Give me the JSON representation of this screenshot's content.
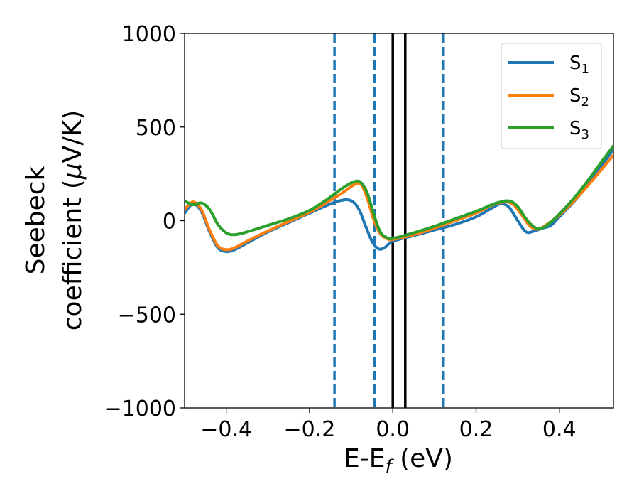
{
  "chart_data": {
    "type": "line",
    "title": "",
    "xlabel": "E-E",
    "xlabel_sub": "f",
    "xlabel_unit": " (eV)",
    "ylabel_line1": "Seebeck",
    "ylabel_line2_prefix": "coefficient  (",
    "ylabel_mu": "μ",
    "ylabel_line2_suffix": "V/K)",
    "xlim": [
      -0.5,
      0.53
    ],
    "ylim": [
      -1000,
      1000
    ],
    "x_ticks": [
      -0.4,
      -0.2,
      0.0,
      0.2,
      0.4
    ],
    "x_tick_labels": [
      "−0.4",
      "−0.2",
      "0.0",
      "0.2",
      "0.4"
    ],
    "y_ticks": [
      1000,
      500,
      0,
      -500,
      -1000
    ],
    "y_tick_labels": [
      "1000",
      "500",
      "0",
      "−500",
      "−1000"
    ],
    "legend_position": "top-right",
    "vlines_dashed": {
      "x": [
        -0.14,
        -0.044,
        0.122
      ],
      "color": "#1f77b4"
    },
    "vlines_solid": {
      "x": [
        0.0,
        0.03
      ],
      "color": "#000000"
    },
    "series": [
      {
        "name": "S",
        "sub": "1",
        "color": "#1f77b4",
        "x": [
          -0.5,
          -0.48,
          -0.46,
          -0.44,
          -0.42,
          -0.4,
          -0.38,
          -0.35,
          -0.3,
          -0.25,
          -0.2,
          -0.16,
          -0.13,
          -0.11,
          -0.095,
          -0.08,
          -0.065,
          -0.05,
          -0.035,
          -0.02,
          0.0,
          0.05,
          0.1,
          0.15,
          0.2,
          0.24,
          0.26,
          0.28,
          0.3,
          0.32,
          0.34,
          0.36,
          0.38,
          0.4,
          0.45,
          0.5,
          0.53
        ],
        "y": [
          40,
          90,
          50,
          -60,
          -145,
          -165,
          -155,
          -120,
          -60,
          -10,
          40,
          80,
          105,
          112,
          100,
          55,
          -30,
          -110,
          -150,
          -145,
          -110,
          -80,
          -50,
          -20,
          20,
          70,
          90,
          70,
          0,
          -60,
          -55,
          -40,
          -25,
          20,
          140,
          290,
          380
        ]
      },
      {
        "name": "S",
        "sub": "2",
        "color": "#ff7f0e",
        "x": [
          -0.5,
          -0.48,
          -0.46,
          -0.44,
          -0.42,
          -0.4,
          -0.38,
          -0.35,
          -0.3,
          -0.25,
          -0.2,
          -0.16,
          -0.12,
          -0.09,
          -0.075,
          -0.06,
          -0.045,
          -0.03,
          -0.015,
          0.0,
          0.05,
          0.1,
          0.15,
          0.2,
          0.24,
          0.27,
          0.29,
          0.31,
          0.33,
          0.35,
          0.37,
          0.4,
          0.45,
          0.5,
          0.53
        ],
        "y": [
          60,
          100,
          60,
          -50,
          -135,
          -155,
          -145,
          -110,
          -55,
          -5,
          45,
          95,
          150,
          195,
          190,
          110,
          0,
          -70,
          -95,
          -100,
          -75,
          -40,
          0,
          40,
          85,
          100,
          85,
          30,
          -30,
          -45,
          -20,
          30,
          140,
          270,
          350
        ]
      },
      {
        "name": "S",
        "sub": "3",
        "color": "#2ca02c",
        "x": [
          -0.5,
          -0.48,
          -0.46,
          -0.44,
          -0.42,
          -0.4,
          -0.38,
          -0.35,
          -0.3,
          -0.25,
          -0.2,
          -0.16,
          -0.12,
          -0.09,
          -0.075,
          -0.06,
          -0.045,
          -0.03,
          -0.015,
          0.0,
          0.05,
          0.1,
          0.15,
          0.2,
          0.25,
          0.28,
          0.3,
          0.32,
          0.34,
          0.355,
          0.37,
          0.4,
          0.45,
          0.5,
          0.53
        ],
        "y": [
          105,
          85,
          95,
          60,
          -20,
          -65,
          -75,
          -60,
          -25,
          10,
          55,
          110,
          175,
          210,
          200,
          140,
          30,
          -60,
          -90,
          -95,
          -65,
          -30,
          10,
          50,
          95,
          105,
          75,
          10,
          -35,
          -40,
          -25,
          35,
          160,
          310,
          400
        ]
      }
    ]
  }
}
